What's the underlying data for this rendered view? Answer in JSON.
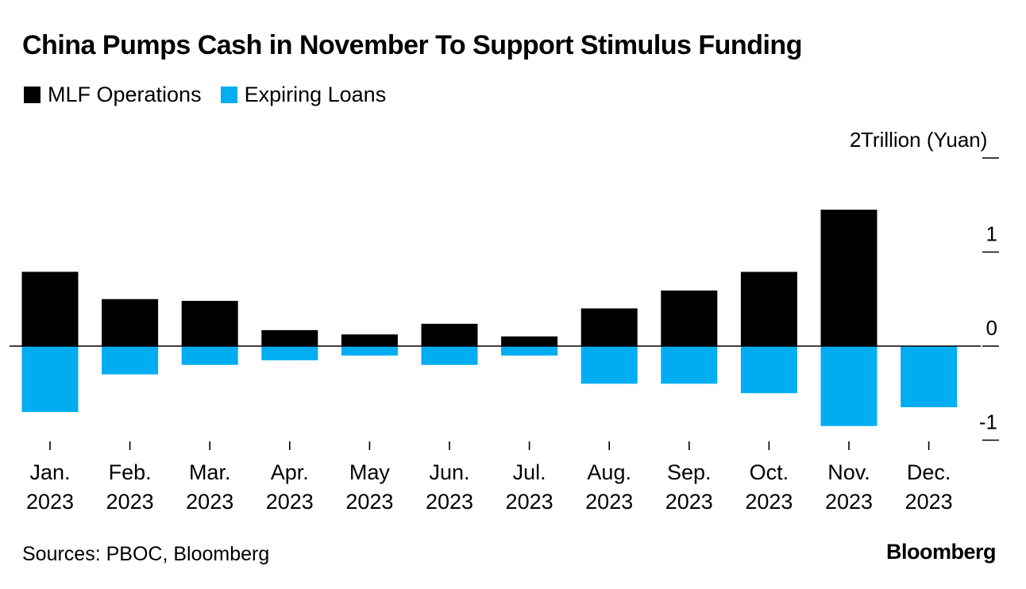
{
  "title": "China Pumps Cash in November To Support Stimulus Funding",
  "legend": [
    {
      "label": "MLF Operations",
      "color": "#000000"
    },
    {
      "label": "Expiring Loans",
      "color": "#00adf0"
    }
  ],
  "source": "Sources: PBOC, Bloomberg",
  "brand": "Bloomberg",
  "chart_data": {
    "type": "bar",
    "stacked": true,
    "title": "China Pumps Cash in November To Support Stimulus Funding",
    "unit_label": "Trillion (Yuan)",
    "categories": [
      [
        "Jan.",
        "2023"
      ],
      [
        "Feb.",
        "2023"
      ],
      [
        "Mar.",
        "2023"
      ],
      [
        "Apr.",
        "2023"
      ],
      [
        "May",
        "2023"
      ],
      [
        "Jun.",
        "2023"
      ],
      [
        "Jul.",
        "2023"
      ],
      [
        "Aug.",
        "2023"
      ],
      [
        "Sep.",
        "2023"
      ],
      [
        "Oct.",
        "2023"
      ],
      [
        "Nov.",
        "2023"
      ],
      [
        "Dec.",
        "2023"
      ]
    ],
    "series": [
      {
        "name": "MLF Operations",
        "color": "#000000",
        "values": [
          0.79,
          0.5,
          0.481,
          0.17,
          0.124,
          0.237,
          0.103,
          0.401,
          0.591,
          0.789,
          1.45,
          null
        ]
      },
      {
        "name": "Expiring Loans",
        "color": "#00adf0",
        "values": [
          -0.7,
          -0.3,
          -0.2,
          -0.15,
          -0.1,
          -0.2,
          -0.1,
          -0.4,
          -0.4,
          -0.5,
          -0.85,
          -0.65
        ]
      }
    ],
    "ylim": [
      -1,
      2
    ],
    "yticks": [
      {
        "value": 2,
        "label": "2"
      },
      {
        "value": 1,
        "label": "1"
      },
      {
        "value": 0,
        "label": "0"
      },
      {
        "value": -1,
        "label": "-1"
      }
    ],
    "grid": false,
    "legend_position": "top-left",
    "axis_position": "right"
  }
}
